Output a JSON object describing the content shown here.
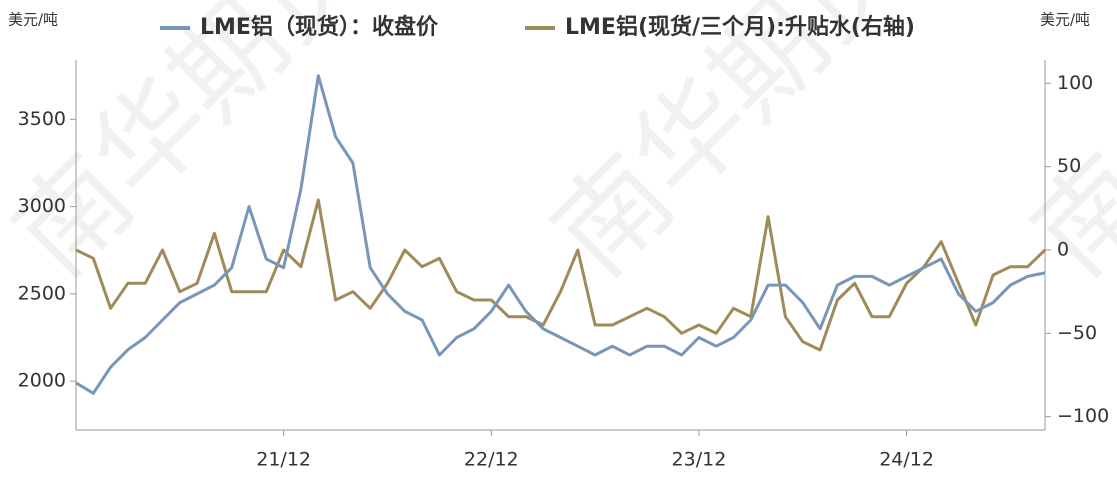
{
  "chart_data": {
    "type": "line",
    "left_unit": "美元/吨",
    "right_unit": "美元/吨",
    "watermark": "南华期货",
    "categories": [
      null,
      null,
      null,
      null,
      null,
      null,
      null,
      null,
      null,
      null,
      null,
      null,
      "21/12",
      null,
      null,
      null,
      null,
      null,
      null,
      null,
      null,
      null,
      null,
      null,
      "22/12",
      null,
      null,
      null,
      null,
      null,
      null,
      null,
      null,
      null,
      null,
      null,
      "23/12",
      null,
      null,
      null,
      null,
      null,
      null,
      null,
      null,
      null,
      null,
      null,
      "24/12",
      null,
      null,
      null,
      null,
      null,
      null,
      null,
      null
    ],
    "series": [
      {
        "name": "LME铝（现货）：收盘价",
        "color": "#7896b8",
        "values": [
          1990,
          1930,
          2080,
          2180,
          2250,
          2350,
          2450,
          2500,
          2550,
          2650,
          3000,
          2700,
          2650,
          3100,
          3750,
          3400,
          3250,
          2650,
          2500,
          2400,
          2350,
          2150,
          2250,
          2300,
          2400,
          2550,
          2400,
          2300,
          2250,
          2200,
          2150,
          2200,
          2150,
          2200,
          2200,
          2150,
          2250,
          2200,
          2250,
          2350,
          2550,
          2550,
          2450,
          2300,
          2550,
          2600,
          2600,
          2550,
          2600,
          2650,
          2700,
          2500,
          2400,
          2450,
          2550,
          2600,
          2620
        ]
      },
      {
        "name": "LME铝(现货/三个月):升贴水(右轴)",
        "color": "#a08a58",
        "axis": "y2",
        "values": [
          0,
          -5,
          -35,
          -20,
          -20,
          0,
          -25,
          -20,
          10,
          -25,
          -25,
          -25,
          0,
          -10,
          30,
          -30,
          -25,
          -35,
          -20,
          0,
          -10,
          -5,
          -25,
          -30,
          -30,
          -40,
          -40,
          -45,
          -25,
          0,
          -45,
          -45,
          -40,
          -35,
          -40,
          -50,
          -45,
          -50,
          -35,
          -40,
          20,
          -40,
          -55,
          -60,
          -30,
          -20,
          -40,
          -40,
          -20,
          -10,
          5,
          -20,
          -45,
          -15,
          -10,
          -10,
          0
        ]
      }
    ],
    "ylim": [
      1720,
      3840
    ],
    "yticks": [
      2000,
      2500,
      3000,
      3500
    ],
    "y2lim": [
      -108,
      114
    ],
    "y2ticks": [
      {
        "value": -100,
        "label": "−100"
      },
      {
        "value": -50,
        "label": "−50"
      },
      0,
      50,
      100
    ],
    "grid": false
  }
}
